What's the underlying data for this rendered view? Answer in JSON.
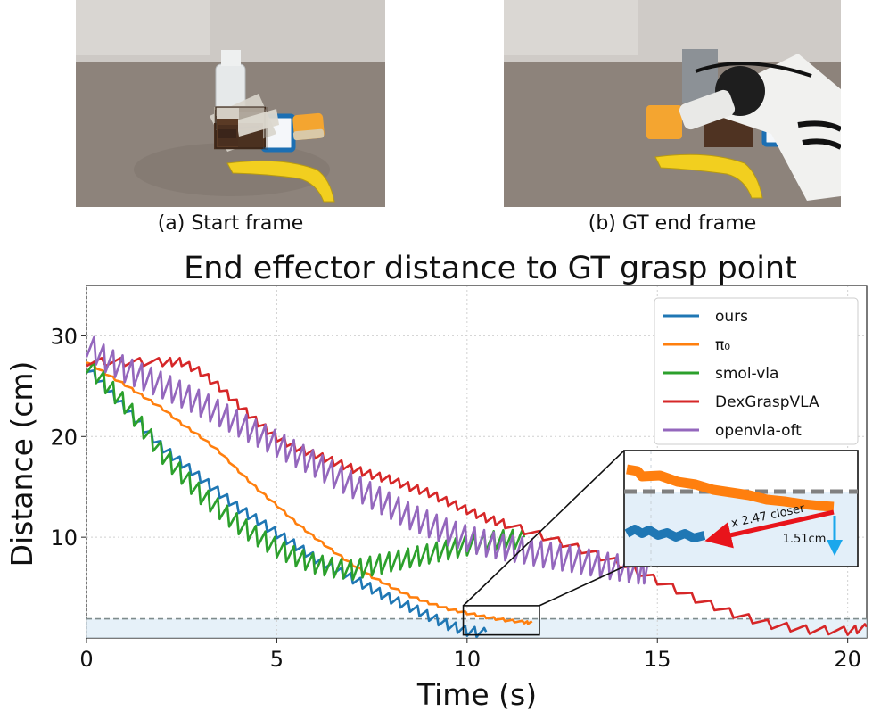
{
  "photos": [
    {
      "caption": "(a) Start frame",
      "scene": "start-frame",
      "table_color": "#8a7f76",
      "wall_color": "#c9c5c1"
    },
    {
      "caption": "(b) GT end frame",
      "scene": "gt-end-frame",
      "table_color": "#8a7f76",
      "wall_color": "#cbc7c3"
    }
  ],
  "chart_data": {
    "type": "line",
    "title": "End effector distance to GT grasp point",
    "xlabel": "Time (s)",
    "ylabel": "Distance (cm)",
    "xlim": [
      0,
      20.5
    ],
    "ylim": [
      0,
      35
    ],
    "xticks": [
      0,
      5,
      10,
      15,
      20
    ],
    "yticks": [
      10,
      20,
      30
    ],
    "grid": true,
    "legend_position": "top-right",
    "threshold_line": 1.9,
    "series": [
      {
        "name": "ours",
        "color": "#1f77b4",
        "x": [
          0,
          0.5,
          1,
          1.5,
          2,
          2.5,
          3,
          3.5,
          4,
          4.5,
          5,
          5.5,
          6,
          6.5,
          7,
          7.5,
          8,
          8.5,
          9,
          9.5,
          10,
          10.5
        ],
        "y": [
          27,
          25,
          23,
          21,
          19,
          17.5,
          16,
          14.5,
          13,
          11.8,
          10.5,
          9.3,
          8,
          7,
          6,
          5,
          4,
          3.2,
          2.3,
          1.4,
          0.8,
          0.6
        ],
        "jitter": 0.6
      },
      {
        "name": "π₀",
        "color": "#ff7f0e",
        "x": [
          0,
          0.5,
          1,
          1.5,
          2,
          2.5,
          3,
          3.5,
          4,
          4.5,
          5,
          5.5,
          6,
          6.5,
          7,
          7.5,
          8,
          8.5,
          9,
          9.5,
          10,
          10.5,
          11,
          11.5,
          11.7
        ],
        "y": [
          27.5,
          26.3,
          25.2,
          24,
          22.8,
          21.3,
          20,
          18.5,
          16.6,
          14.8,
          13.2,
          11.5,
          10,
          8.6,
          7.3,
          6.1,
          5.1,
          4.2,
          3.5,
          2.9,
          2.5,
          2.1,
          1.8,
          1.6,
          1.5
        ],
        "jitter": 0.15
      },
      {
        "name": "smol-vla",
        "color": "#2ca02c",
        "x": [
          0,
          0.5,
          1,
          1.5,
          2,
          2.5,
          3,
          3.5,
          4,
          4.5,
          5,
          5.5,
          6,
          6.5,
          7,
          7.5,
          8,
          8.5,
          9,
          9.5,
          10,
          10.5,
          11,
          11.5
        ],
        "y": [
          27.5,
          25.5,
          23.5,
          21,
          18.5,
          16.5,
          14.5,
          13,
          11.5,
          10.3,
          9.2,
          8.3,
          7.6,
          7.2,
          7.0,
          7.4,
          7.8,
          8.2,
          8.6,
          9.0,
          9.4,
          9.8,
          10.0,
          10.0
        ],
        "jitter": 1.2
      },
      {
        "name": "DexGraspVLA",
        "color": "#d62728",
        "x": [
          0,
          1,
          2,
          2.5,
          3,
          3.5,
          4,
          4.5,
          5,
          5.5,
          6,
          6.5,
          7,
          7.5,
          8,
          8.5,
          9,
          9.5,
          10,
          10.5,
          11,
          12,
          13,
          14,
          15,
          16,
          17,
          18,
          19,
          20,
          20.5
        ],
        "y": [
          27.5,
          27.5,
          27.5,
          27.5,
          26.5,
          25,
          23.2,
          21.5,
          20,
          19,
          18.3,
          17.6,
          16.9,
          16.3,
          15.8,
          15.1,
          14.5,
          13.6,
          12.8,
          12.0,
          11.4,
          10.2,
          8.9,
          7.5,
          5.8,
          4.0,
          2.5,
          1.4,
          0.9,
          0.8,
          1.1
        ],
        "jitter": 0.5
      },
      {
        "name": "openvla-oft",
        "color": "#9467bd",
        "x": [
          0,
          0.5,
          1,
          1.5,
          2,
          2.5,
          3,
          3.5,
          4,
          4.5,
          5,
          5.5,
          6,
          6.5,
          7,
          7.5,
          8,
          8.5,
          9,
          9.5,
          10,
          10.5,
          11,
          11.5,
          12,
          12.5,
          13,
          13.5,
          14,
          14.5,
          14.8
        ],
        "y": [
          29.5,
          28,
          27,
          26.2,
          25.4,
          24.5,
          23.6,
          22.6,
          21.6,
          20.6,
          19.6,
          18.6,
          17.6,
          16.5,
          15.5,
          14.4,
          13.4,
          12.4,
          11.6,
          10.8,
          10.2,
          9.7,
          9.3,
          9.0,
          8.6,
          8.3,
          8.0,
          7.6,
          7.3,
          7.0,
          7.0
        ],
        "jitter": 1.6
      }
    ],
    "inset": {
      "annotation": "x 2.47 closer",
      "delta_label": "1.51cm",
      "arrow_color": "#e8141b",
      "delta_color": "#1aa7ec"
    }
  }
}
